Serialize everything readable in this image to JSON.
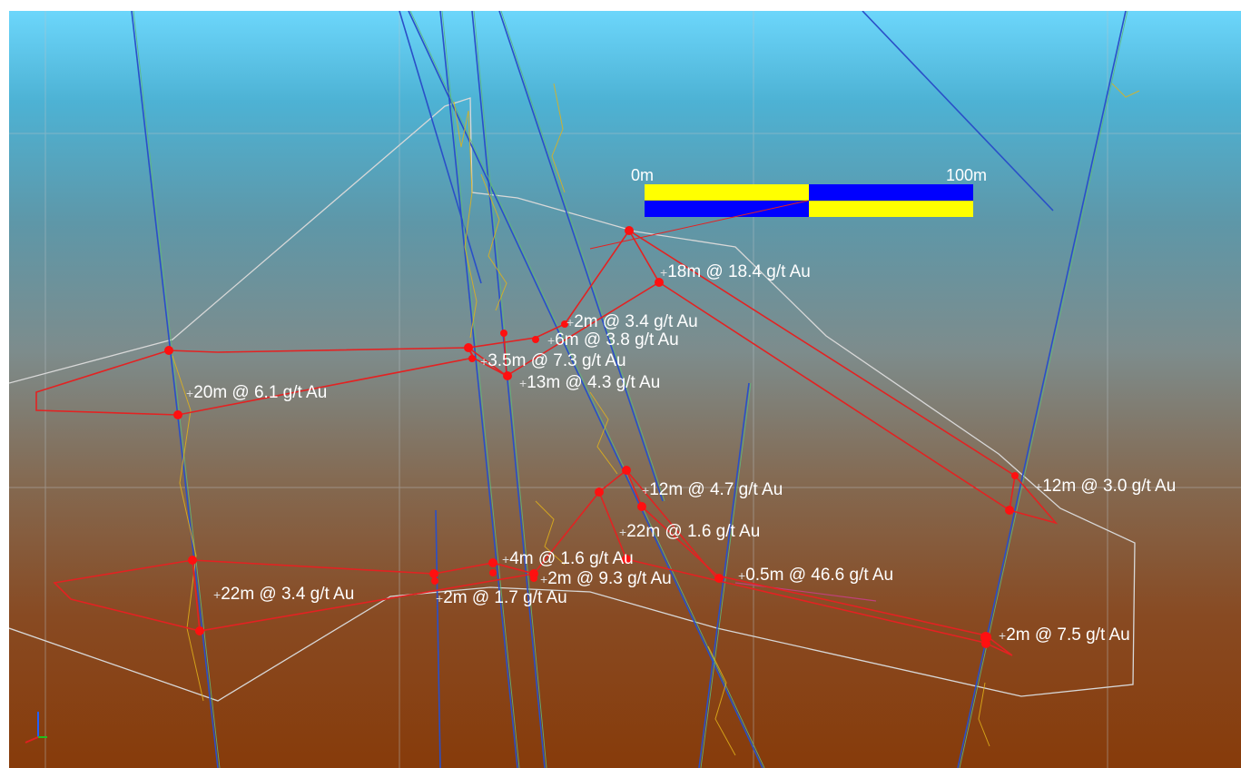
{
  "scale_bar": {
    "start_label": "0m",
    "end_label": "100m",
    "colors": {
      "a": "#ffff00",
      "b": "#0000ff"
    }
  },
  "intercepts": [
    {
      "id": "i1",
      "text": "18m @ 18.4 g/t Au"
    },
    {
      "id": "i2",
      "text": "2m @ 3.4 g/t Au"
    },
    {
      "id": "i3",
      "text": "6m @ 3.8 g/t Au"
    },
    {
      "id": "i4",
      "text": "3.5m @ 7.3 g/t Au"
    },
    {
      "id": "i5",
      "text": "13m @ 4.3 g/t Au"
    },
    {
      "id": "i6",
      "text": "20m @ 6.1 g/t Au"
    },
    {
      "id": "i7",
      "text": "12m @ 4.7 g/t Au"
    },
    {
      "id": "i8",
      "text": "12m @ 3.0 g/t Au"
    },
    {
      "id": "i9",
      "text": "22m @ 1.6 g/t Au"
    },
    {
      "id": "i10",
      "text": "4m @ 1.6 g/t Au"
    },
    {
      "id": "i11",
      "text": "2m @ 9.3 g/t Au"
    },
    {
      "id": "i12",
      "text": "0.5m @ 46.6 g/t Au"
    },
    {
      "id": "i13",
      "text": "22m @ 3.4 g/t Au"
    },
    {
      "id": "i14",
      "text": "2m @ 1.7 g/t Au"
    },
    {
      "id": "i15",
      "text": "2m @ 7.5 g/t Au"
    }
  ],
  "colors": {
    "ore_outline": "#e32222",
    "intercept_marker": "#ff1010",
    "drillhole_trace": "#2a4fc8",
    "drillhole_core": "#5fb87a",
    "assay_trace": "#e0b21a",
    "pit_outline": "#d8d8d8",
    "grid": "#b9c3c8"
  },
  "axis_triad": {
    "x_color": "#e02020",
    "y_color": "#20c020",
    "z_color": "#2060ff"
  }
}
